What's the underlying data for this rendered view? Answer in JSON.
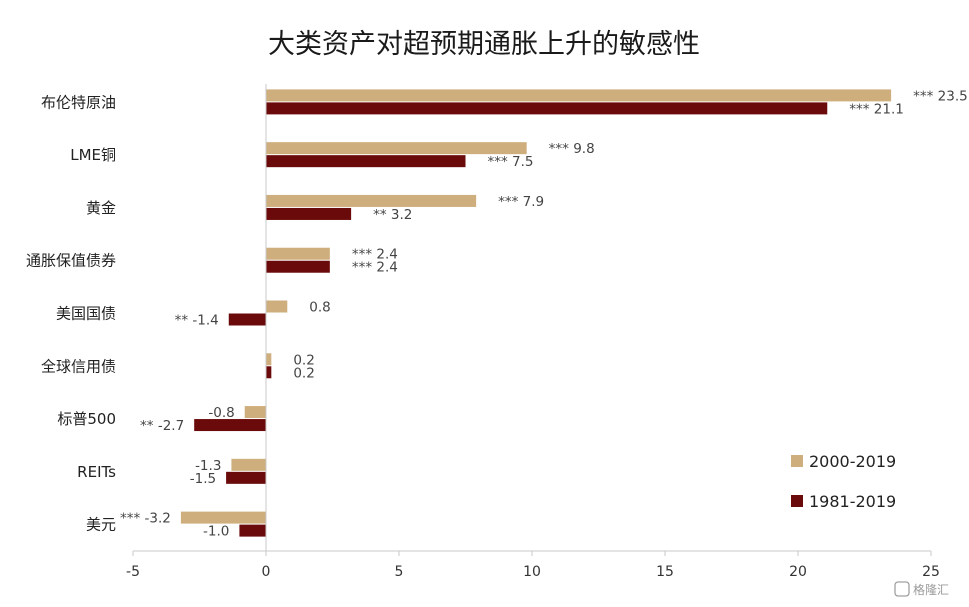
{
  "chart_data": {
    "type": "bar",
    "orientation": "horizontal",
    "title": "大类资产对超预期通胀上升的敏感性",
    "categories": [
      "布伦特原油",
      "LME铜",
      "黄金",
      "通胀保值债券",
      "美国国债",
      "全球信用债",
      "标普500",
      "REITs",
      "美元"
    ],
    "series": [
      {
        "name": "2000-2019",
        "color": "#cfae7e",
        "values": [
          23.5,
          9.8,
          7.9,
          2.4,
          0.8,
          0.2,
          -0.8,
          -1.3,
          -3.2
        ],
        "labels": [
          "*** 23.5",
          "*** 9.8",
          "*** 7.9",
          "*** 2.4",
          "0.8",
          "0.2",
          "-0.8",
          "-1.3",
          "*** -3.2"
        ]
      },
      {
        "name": "1981-2019",
        "color": "#6b0a0a",
        "values": [
          21.1,
          7.5,
          3.2,
          2.4,
          -1.4,
          0.2,
          -2.7,
          -1.5,
          -1.0
        ],
        "labels": [
          "*** 21.1",
          "*** 7.5",
          "** 3.2",
          "*** 2.4",
          "** -1.4",
          "0.2",
          "** -2.7",
          "-1.5",
          "-1.0"
        ]
      }
    ],
    "xlim": [
      -5,
      25
    ],
    "xticks": [
      "-5",
      "0",
      "5",
      "10",
      "15",
      "20",
      "25"
    ],
    "xlabel": "",
    "ylabel": "",
    "grid": false,
    "legend": "lower-right"
  },
  "watermark": "格隆汇"
}
